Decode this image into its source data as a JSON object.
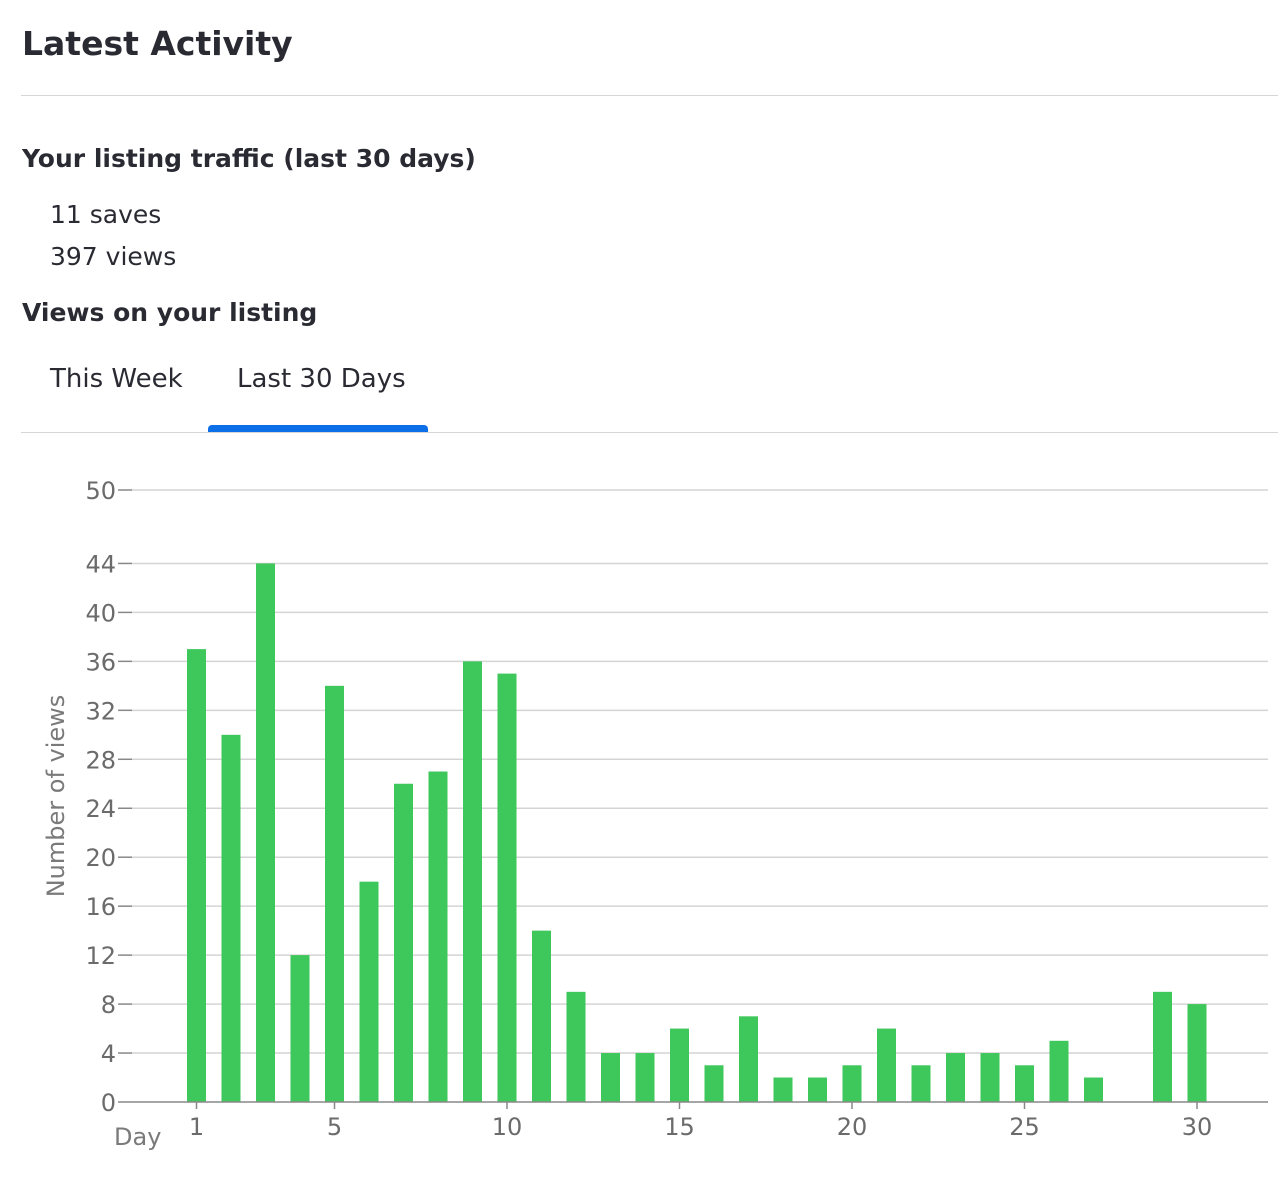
{
  "header": {
    "title": "Latest Activity"
  },
  "traffic": {
    "heading": "Your listing traffic (last 30 days)",
    "saves": "11 saves",
    "views": "397 views"
  },
  "views_section": {
    "heading": "Views on your listing",
    "tabs": [
      {
        "label": "This Week",
        "active": false
      },
      {
        "label": "Last 30 Days",
        "active": true
      }
    ]
  },
  "colors": {
    "bar": "#3ec75a",
    "tab_active": "#0d6fe8",
    "grid": "#d4d4d4"
  },
  "chart_data": {
    "type": "bar",
    "title": "",
    "xlabel": "Day",
    "ylabel": "Number of views",
    "categories": [
      1,
      2,
      3,
      4,
      5,
      6,
      7,
      8,
      9,
      10,
      11,
      12,
      13,
      14,
      15,
      16,
      17,
      18,
      19,
      20,
      21,
      22,
      23,
      24,
      25,
      26,
      27,
      28,
      29,
      30
    ],
    "values": [
      37,
      30,
      44,
      12,
      34,
      18,
      26,
      27,
      36,
      35,
      14,
      9,
      4,
      4,
      6,
      3,
      7,
      2,
      2,
      3,
      6,
      3,
      4,
      4,
      3,
      5,
      2,
      0,
      9,
      8
    ],
    "x_ticks": [
      1,
      5,
      10,
      15,
      20,
      25,
      30
    ],
    "y_ticks": [
      0,
      4,
      8,
      12,
      16,
      20,
      24,
      28,
      32,
      36,
      40,
      44,
      50
    ],
    "ylim": [
      0,
      50
    ],
    "grid": true,
    "legend": "none"
  }
}
